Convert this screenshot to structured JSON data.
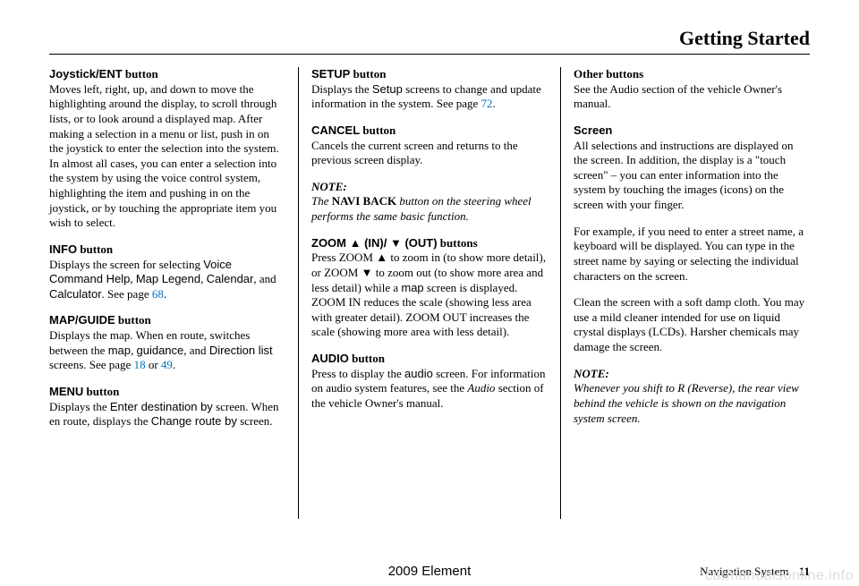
{
  "header": {
    "title": "Getting Started"
  },
  "col1": {
    "joystick": {
      "title_a": "Joystick/ENT",
      "title_b": " button",
      "body": "Moves left, right, up, and down to move the highlighting around the display, to scroll through lists, or to look around a displayed map. After making a selection in a menu or list, push in on the joystick to enter the selection into the system. In almost all cases, you can enter a selection into the system by using the voice control system, highlighting the item and pushing in on the joystick, or by touching the appropriate item you wish to select."
    },
    "info": {
      "title_a": "INFO",
      "title_b": " button",
      "pre": "Displays the screen for selecting ",
      "sans1": "Voice Command Help",
      "sep1": ", ",
      "sans2": "Map Legend",
      "sep2": ", ",
      "sans3": "Calendar",
      "mid": ", and ",
      "sans4": "Calculator",
      "post": ". See page ",
      "link": "68",
      "end": "."
    },
    "mapguide": {
      "title_a": "MAP/GUIDE",
      "title_b": " button",
      "pre": "Displays the map. When en route, switches between the ",
      "sans1": "map",
      "sep1": ", ",
      "sans2": "guidance",
      "mid": ", and ",
      "sans3": "Direction list",
      "post": " screens. See page ",
      "link1": "18",
      "or": " or ",
      "link2": "49",
      "end": "."
    },
    "menu": {
      "title_a": "MENU",
      "title_b": " button",
      "pre": "Displays the ",
      "sans1": "Enter destination by",
      "mid": " screen. When en route, displays the ",
      "sans2": "Change route by",
      "post": " screen."
    }
  },
  "col2": {
    "setup": {
      "title_a": "SETUP",
      "title_b": " button",
      "pre": "Displays the ",
      "sans1": "Setup",
      "post": " screens to change and update information in the system. See page ",
      "link": "72",
      "end": "."
    },
    "cancel": {
      "title_a": "CANCEL",
      "title_b": " button",
      "body": "Cancels the current screen and returns to the previous screen display."
    },
    "note": {
      "label": "NOTE:",
      "pre": "The ",
      "bold": "NAVI BACK",
      "post": " button on the steering wheel performs the same basic function."
    },
    "zoom": {
      "title_a": "ZOOM ▲ (IN)/ ▼ (OUT)",
      "title_b": " buttons",
      "pre": "Press ZOOM ▲ to zoom in (to show more detail), or ZOOM ▼ to zoom out (to show more area and less detail) while a ",
      "sans1": "map",
      "post": " screen is displayed. ZOOM IN reduces the scale (showing less area with greater detail). ZOOM OUT increases the scale (showing more area with less detail)."
    },
    "audio": {
      "title_a": "AUDIO",
      "title_b": " button",
      "pre": "Press to display the ",
      "sans1": "audio",
      "mid": " screen. For information on audio system features, see the ",
      "ital": "Audio",
      "post": " section of the vehicle Owner's manual."
    }
  },
  "col3": {
    "other": {
      "title": "Other buttons",
      "body": "See the Audio section of the vehicle Owner's manual."
    },
    "screen": {
      "title": "Screen",
      "p1": "All selections and instructions are displayed on the screen. In addition, the display is a \"touch screen\" – you can enter information into the system by touching the images (icons) on the screen with your finger.",
      "p2": "For example, if you need to enter a street name, a keyboard will be displayed. You can type in the street name by saying or selecting the individual characters on the screen.",
      "p3": "Clean the screen with a soft damp cloth. You may use a mild cleaner intended for use on liquid crystal displays (LCDs). Harsher chemicals may damage the screen."
    },
    "note": {
      "label": "NOTE:",
      "body": "Whenever you shift to R (Reverse), the rear view behind the vehicle is shown on the navigation system screen."
    }
  },
  "footer": {
    "center": "2009  Element",
    "section": "Navigation System",
    "page": "11"
  },
  "watermark": "carmanualsonline.info"
}
